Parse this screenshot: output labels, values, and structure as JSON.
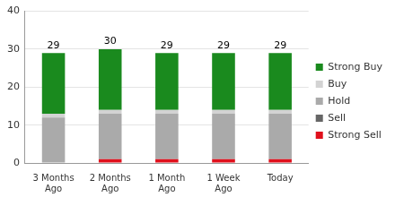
{
  "chart_data": {
    "type": "bar",
    "categories": [
      "3 Months Ago",
      "2 Months Ago",
      "1 Month Ago",
      "1 Week Ago",
      "Today"
    ],
    "series": [
      {
        "name": "Strong Sell",
        "color": "#e0101c",
        "values": [
          0,
          1,
          1,
          1,
          1
        ]
      },
      {
        "name": "Sell",
        "color": "#666666",
        "values": [
          0,
          0,
          0,
          0,
          0
        ]
      },
      {
        "name": "Hold",
        "color": "#aaaaaa",
        "values": [
          12,
          12,
          12,
          12,
          12
        ]
      },
      {
        "name": "Buy",
        "color": "#d3d3d3",
        "values": [
          1,
          1,
          1,
          1,
          1
        ]
      },
      {
        "name": "Strong Buy",
        "color": "#1a8a1e",
        "values": [
          16,
          16,
          15,
          15,
          15
        ]
      }
    ],
    "totals": [
      29,
      30,
      29,
      29,
      29
    ],
    "ylim": [
      0,
      40
    ],
    "yticks": [
      0,
      10,
      20,
      30,
      40
    ],
    "stacked": true,
    "grid": true,
    "legend": "right"
  }
}
